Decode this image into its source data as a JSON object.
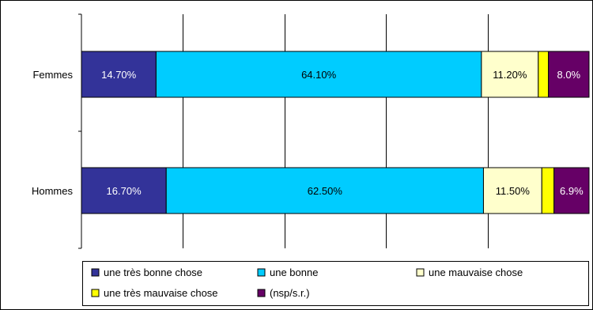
{
  "chart_data": {
    "type": "bar",
    "orientation": "horizontal",
    "stacked": true,
    "normalized_to_100": true,
    "categories": [
      "Femmes",
      "Hommes"
    ],
    "series": [
      {
        "name": "une très bonne chose",
        "color": "#333399",
        "label_color": "#ffffff",
        "values": [
          14.7,
          16.7
        ],
        "labels": [
          "14.70%",
          "16.70%"
        ]
      },
      {
        "name": "une bonne",
        "color": "#00ccff",
        "label_color": "#000000",
        "values": [
          64.1,
          62.5
        ],
        "labels": [
          "64.10%",
          "62.50%"
        ]
      },
      {
        "name": "une mauvaise chose",
        "color": "#ffffcc",
        "label_color": "#000000",
        "values": [
          11.2,
          11.5
        ],
        "labels": [
          "11.20%",
          "11.50%"
        ]
      },
      {
        "name": "une très mauvaise chose",
        "color": "#ffff00",
        "label_color": "#000000",
        "values": [
          2.0,
          2.4
        ],
        "labels": [
          "",
          ""
        ]
      },
      {
        "name": "(nsp/s.r.)",
        "color": "#660066",
        "label_color": "#ffffff",
        "values": [
          8.0,
          6.9
        ],
        "labels": [
          "8.0%",
          "6.9%"
        ]
      }
    ],
    "xlim": [
      0,
      100
    ],
    "grid": true,
    "legend_position": "bottom"
  }
}
